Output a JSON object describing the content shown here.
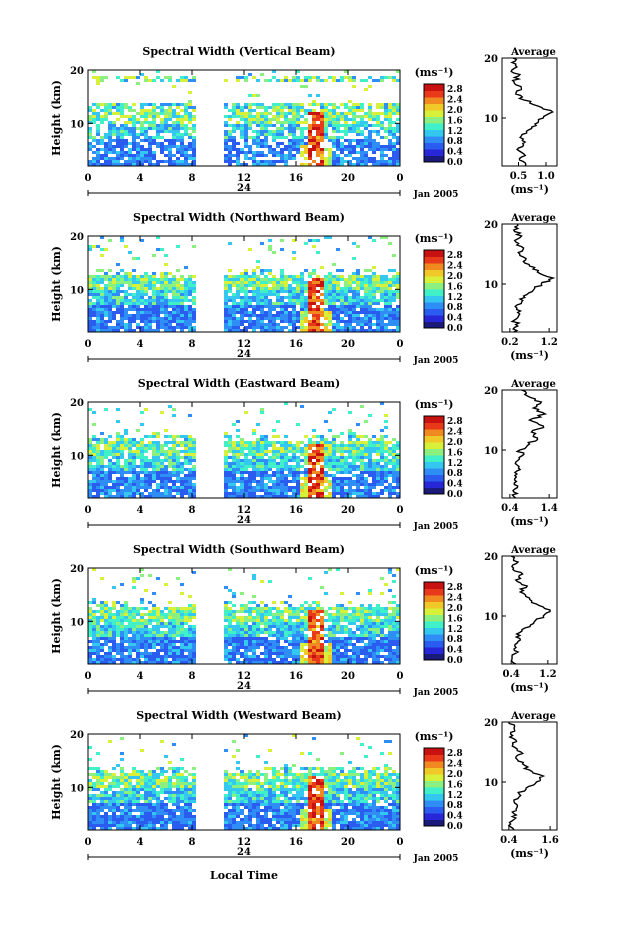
{
  "figure": {
    "bottom_label": "Local Time",
    "date_label": "Jan 2005",
    "unit_label": "(ms⁻¹)",
    "average_title": "Average",
    "colormap": [
      "#1a1a7a",
      "#2727d8",
      "#2a5cf0",
      "#2f8ef5",
      "#34c8f0",
      "#3ff0c8",
      "#8cf080",
      "#d8f03a",
      "#f0c828",
      "#f08a20",
      "#e83a1a",
      "#c81212"
    ]
  },
  "chart_data": [
    {
      "type": "heatmap",
      "title": "Spectral Width (Vertical Beam)",
      "ylabel": "Height (km)",
      "xlabel": "Local Time",
      "x_ticks": [
        "0",
        "4",
        "8",
        "12",
        "16",
        "20",
        "0"
      ],
      "x_mid_label": "24",
      "xlim": [
        0,
        24
      ],
      "y_ticks": [
        "10",
        "20"
      ],
      "ylim": [
        2,
        20
      ],
      "colorbar": {
        "label": "(ms⁻¹)",
        "ticks": [
          "0.0",
          "0.4",
          "0.8",
          "1.2",
          "1.6",
          "2.0",
          "2.4",
          "2.8"
        ],
        "range": [
          0,
          3.0
        ]
      },
      "average_profile": {
        "title": "Average",
        "xlabel": "(ms⁻¹)",
        "x_ticks": [
          "0.5",
          "1.0"
        ],
        "xlim": [
          0.2,
          1.2
        ],
        "y_ticks": [
          "10",
          "20"
        ],
        "points": [
          [
            0.62,
            2
          ],
          [
            0.52,
            3
          ],
          [
            0.6,
            4
          ],
          [
            0.5,
            5
          ],
          [
            0.62,
            6
          ],
          [
            0.55,
            7
          ],
          [
            0.68,
            8
          ],
          [
            0.8,
            9
          ],
          [
            0.95,
            10
          ],
          [
            1.12,
            11
          ],
          [
            0.85,
            12
          ],
          [
            0.6,
            13
          ],
          [
            0.45,
            14
          ],
          [
            0.55,
            15
          ],
          [
            0.42,
            16
          ],
          [
            0.5,
            17
          ],
          [
            0.38,
            18
          ],
          [
            0.45,
            19
          ],
          [
            0.4,
            20
          ]
        ]
      }
    },
    {
      "type": "heatmap",
      "title": "Spectral Width (Northward Beam)",
      "ylabel": "Height (km)",
      "xlabel": "Local Time",
      "x_ticks": [
        "0",
        "4",
        "8",
        "12",
        "16",
        "20",
        "0"
      ],
      "x_mid_label": "24",
      "xlim": [
        0,
        24
      ],
      "y_ticks": [
        "10",
        "20"
      ],
      "ylim": [
        2,
        20
      ],
      "colorbar": {
        "label": "(ms⁻¹)",
        "ticks": [
          "0.0",
          "0.4",
          "0.8",
          "1.2",
          "1.6",
          "2.0",
          "2.4",
          "2.8"
        ],
        "range": [
          0,
          3.0
        ]
      },
      "average_profile": {
        "title": "Average",
        "xlabel": "(ms⁻¹)",
        "x_ticks": [
          "0.2",
          "1.2"
        ],
        "xlim": [
          0.0,
          1.4
        ],
        "y_ticks": [
          "10",
          "20"
        ],
        "points": [
          [
            0.3,
            2
          ],
          [
            0.4,
            3
          ],
          [
            0.32,
            4
          ],
          [
            0.45,
            5
          ],
          [
            0.38,
            6
          ],
          [
            0.5,
            7
          ],
          [
            0.55,
            8
          ],
          [
            0.8,
            9
          ],
          [
            1.0,
            10
          ],
          [
            1.3,
            11
          ],
          [
            0.9,
            12
          ],
          [
            0.7,
            13
          ],
          [
            0.6,
            14
          ],
          [
            0.45,
            15
          ],
          [
            0.55,
            16
          ],
          [
            0.35,
            17
          ],
          [
            0.5,
            18
          ],
          [
            0.3,
            19
          ],
          [
            0.4,
            20
          ]
        ]
      }
    },
    {
      "type": "heatmap",
      "title": "Spectral Width (Eastward Beam)",
      "ylabel": "Height (km)",
      "xlabel": "Local Time",
      "x_ticks": [
        "0",
        "4",
        "8",
        "12",
        "16",
        "20",
        "0"
      ],
      "x_mid_label": "24",
      "xlim": [
        0,
        24
      ],
      "y_ticks": [
        "10",
        "20"
      ],
      "ylim": [
        2,
        20
      ],
      "colorbar": {
        "label": "(ms⁻¹)",
        "ticks": [
          "0.0",
          "0.4",
          "0.8",
          "1.2",
          "1.6",
          "2.0",
          "2.4",
          "2.8"
        ],
        "range": [
          0,
          3.0
        ]
      },
      "average_profile": {
        "title": "Average",
        "xlabel": "(ms⁻¹)",
        "x_ticks": [
          "0.4",
          "1.4"
        ],
        "xlim": [
          0.2,
          1.6
        ],
        "y_ticks": [
          "10",
          "20"
        ],
        "points": [
          [
            0.55,
            2
          ],
          [
            0.5,
            3
          ],
          [
            0.6,
            4
          ],
          [
            0.52,
            5
          ],
          [
            0.58,
            6
          ],
          [
            0.62,
            7
          ],
          [
            0.55,
            8
          ],
          [
            0.7,
            9
          ],
          [
            0.65,
            10
          ],
          [
            0.9,
            11
          ],
          [
            1.1,
            12
          ],
          [
            0.95,
            13
          ],
          [
            1.25,
            14
          ],
          [
            0.9,
            15
          ],
          [
            1.3,
            16
          ],
          [
            1.0,
            17
          ],
          [
            1.2,
            18
          ],
          [
            0.85,
            19
          ],
          [
            0.7,
            20
          ]
        ]
      }
    },
    {
      "type": "heatmap",
      "title": "Spectral Width (Southward Beam)",
      "ylabel": "Height (km)",
      "xlabel": "Local Time",
      "x_ticks": [
        "0",
        "4",
        "8",
        "12",
        "16",
        "20",
        "0"
      ],
      "x_mid_label": "24",
      "xlim": [
        0,
        24
      ],
      "y_ticks": [
        "10",
        "20"
      ],
      "ylim": [
        2,
        20
      ],
      "colorbar": {
        "label": "(ms⁻¹)",
        "ticks": [
          "0.0",
          "0.4",
          "0.8",
          "1.2",
          "1.6",
          "2.0",
          "2.4",
          "2.8"
        ],
        "range": [
          0,
          3.0
        ]
      },
      "average_profile": {
        "title": "Average",
        "xlabel": "(ms⁻¹)",
        "x_ticks": [
          "0.4",
          "1.2"
        ],
        "xlim": [
          0.2,
          1.4
        ],
        "y_ticks": [
          "10",
          "20"
        ],
        "points": [
          [
            0.5,
            2
          ],
          [
            0.42,
            3
          ],
          [
            0.55,
            4
          ],
          [
            0.48,
            5
          ],
          [
            0.6,
            6
          ],
          [
            0.52,
            7
          ],
          [
            0.7,
            8
          ],
          [
            0.9,
            9
          ],
          [
            1.1,
            10
          ],
          [
            1.25,
            11
          ],
          [
            0.95,
            12
          ],
          [
            0.8,
            13
          ],
          [
            0.6,
            14
          ],
          [
            0.75,
            15
          ],
          [
            0.5,
            16
          ],
          [
            0.65,
            17
          ],
          [
            0.45,
            18
          ],
          [
            0.55,
            19
          ],
          [
            0.4,
            20
          ]
        ]
      }
    },
    {
      "type": "heatmap",
      "title": "Spectral Width (Westward Beam)",
      "ylabel": "Height (km)",
      "xlabel": "Local Time",
      "x_ticks": [
        "0",
        "4",
        "8",
        "12",
        "16",
        "20",
        "0"
      ],
      "x_mid_label": "24",
      "xlim": [
        0,
        24
      ],
      "y_ticks": [
        "10",
        "20"
      ],
      "ylim": [
        2,
        20
      ],
      "colorbar": {
        "label": "(ms⁻¹)",
        "ticks": [
          "0.0",
          "0.4",
          "0.8",
          "1.2",
          "1.6",
          "2.0",
          "2.4",
          "2.8"
        ],
        "range": [
          0,
          3.0
        ]
      },
      "average_profile": {
        "title": "Average",
        "xlabel": "(ms⁻¹)",
        "x_ticks": [
          "0.4",
          "1.6"
        ],
        "xlim": [
          0.2,
          1.8
        ],
        "y_ticks": [
          "10",
          "20"
        ],
        "points": [
          [
            0.55,
            2
          ],
          [
            0.45,
            3
          ],
          [
            0.6,
            4
          ],
          [
            0.5,
            5
          ],
          [
            0.65,
            6
          ],
          [
            0.55,
            7
          ],
          [
            0.7,
            8
          ],
          [
            0.9,
            9
          ],
          [
            1.2,
            10
          ],
          [
            1.4,
            11
          ],
          [
            1.0,
            12
          ],
          [
            0.8,
            13
          ],
          [
            0.6,
            14
          ],
          [
            0.75,
            15
          ],
          [
            0.5,
            16
          ],
          [
            0.6,
            17
          ],
          [
            0.45,
            18
          ],
          [
            0.55,
            19
          ],
          [
            0.4,
            20
          ]
        ]
      }
    }
  ]
}
